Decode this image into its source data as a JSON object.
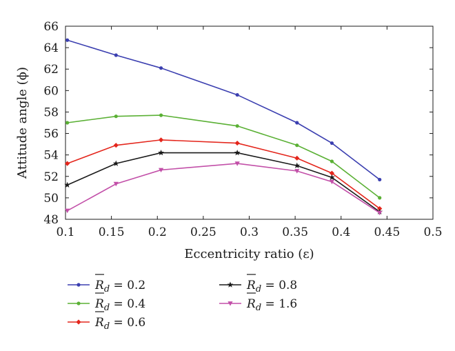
{
  "chart_data": {
    "type": "line",
    "title": "",
    "xlabel": "Eccentricity ratio (ε)",
    "ylabel": "Attitude angle (ϕ)",
    "xlim": [
      0.1,
      0.5
    ],
    "ylim": [
      48,
      66
    ],
    "xticks": [
      0.1,
      0.15,
      0.2,
      0.25,
      0.3,
      0.35,
      0.4,
      0.45,
      0.5
    ],
    "yticks": [
      48,
      50,
      52,
      54,
      56,
      58,
      60,
      62,
      64,
      66
    ],
    "xtick_labels": [
      "0.1",
      "0.15",
      "0.2",
      "0.25",
      "0.3",
      "0.35",
      "0.4",
      "0.45",
      "0.5"
    ],
    "ytick_labels": [
      "48",
      "50",
      "52",
      "54",
      "56",
      "58",
      "60",
      "62",
      "64",
      "66"
    ],
    "grid": false,
    "legend_placement": "bottom",
    "x": [
      0.102,
      0.155,
      0.204,
      0.287,
      0.352,
      0.39,
      0.442
    ],
    "series": [
      {
        "name": "R_d = 0.2",
        "symbol": "R",
        "sub": "d",
        "value_label": " = 0.2",
        "color": "#3b3fb0",
        "marker": "circle",
        "values": [
          64.7,
          63.3,
          62.1,
          59.6,
          57.0,
          55.1,
          51.7
        ]
      },
      {
        "name": "R_d = 0.4",
        "symbol": "R",
        "sub": "d",
        "value_label": " = 0.4",
        "color": "#5ab034",
        "marker": "circle",
        "values": [
          57.0,
          57.6,
          57.7,
          56.7,
          54.9,
          53.4,
          50.0
        ]
      },
      {
        "name": "R_d = 0.6",
        "symbol": "R",
        "sub": "d",
        "value_label": " = 0.6",
        "color": "#e4261c",
        "marker": "diamond",
        "values": [
          53.2,
          54.9,
          55.4,
          55.1,
          53.7,
          52.3,
          49.0
        ]
      },
      {
        "name": "R_d = 0.8",
        "symbol": "R",
        "sub": "d",
        "value_label": " = 0.8",
        "color": "#1a1a1a",
        "marker": "star",
        "values": [
          51.2,
          53.2,
          54.2,
          54.2,
          53.0,
          51.9,
          48.7
        ]
      },
      {
        "name": "R_d = 1.6",
        "symbol": "R",
        "sub": "d",
        "value_label": " = 1.6",
        "color": "#c24fa8",
        "marker": "triangle-down",
        "values": [
          48.8,
          51.3,
          52.6,
          53.2,
          52.5,
          51.5,
          48.6
        ]
      }
    ]
  }
}
